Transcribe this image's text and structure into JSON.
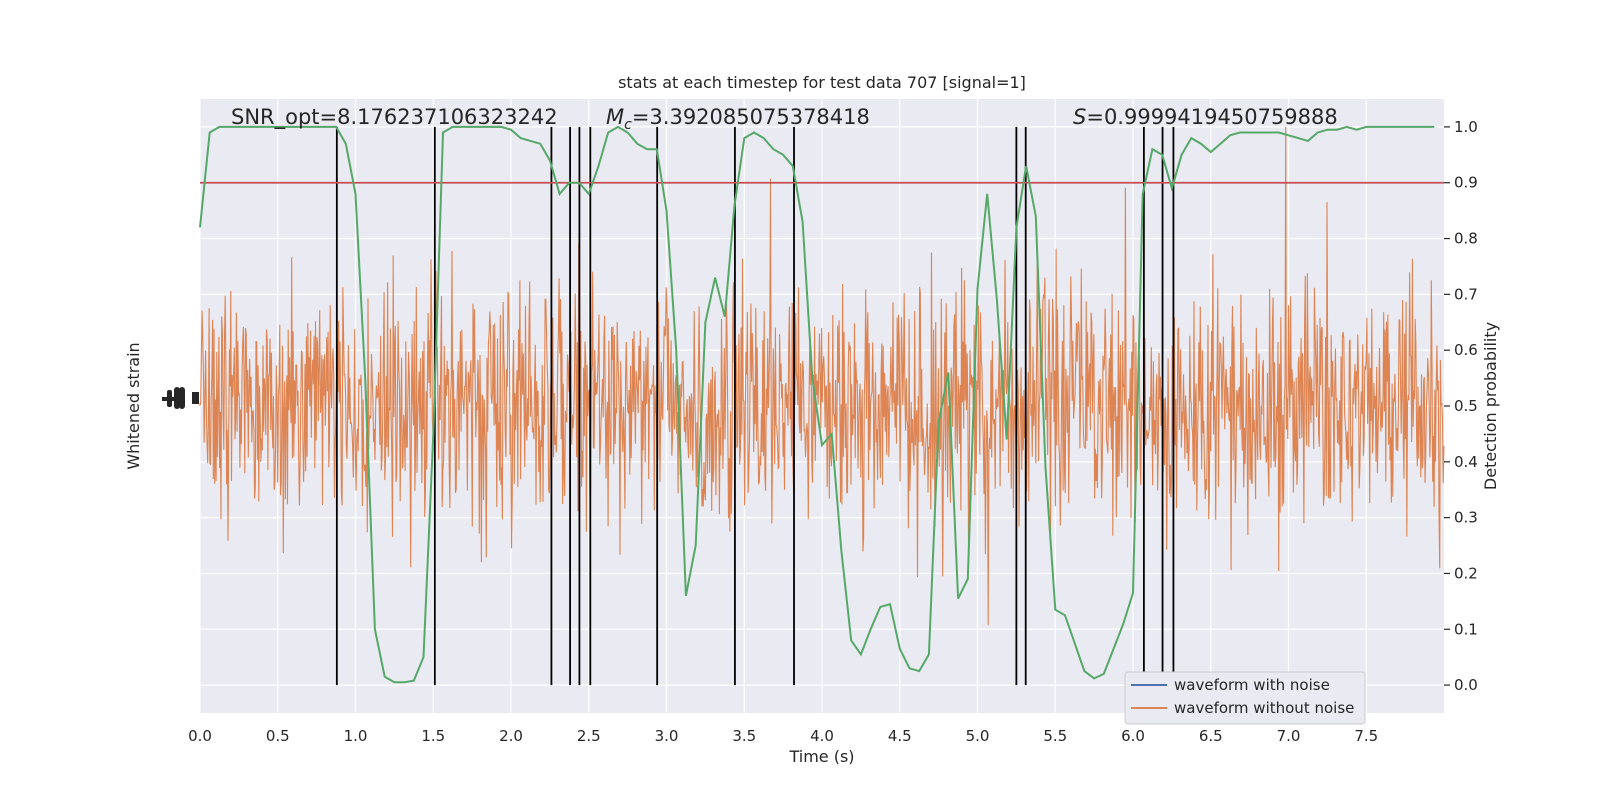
{
  "chart_data": {
    "type": "line",
    "title": "stats at each timestep for test data 707 [signal=1]",
    "xlabel": "Time (s)",
    "ylabel_left": "Whitened strain",
    "ylabel_right": "Detection probability",
    "xlim": [
      0,
      8
    ],
    "ylim_right": [
      -0.05,
      1.05
    ],
    "x_ticks": [
      0.0,
      0.5,
      1.0,
      1.5,
      2.0,
      2.5,
      3.0,
      3.5,
      4.0,
      4.5,
      5.0,
      5.5,
      6.0,
      6.5,
      7.0,
      7.5
    ],
    "x_tick_labels": [
      "0.0",
      "0.5",
      "1.0",
      "1.5",
      "2.0",
      "2.5",
      "3.0",
      "3.5",
      "4.0",
      "4.5",
      "5.0",
      "5.5",
      "6.0",
      "6.5",
      "7.0",
      "7.5"
    ],
    "y_right_ticks": [
      0.0,
      0.1,
      0.2,
      0.3,
      0.4,
      0.5,
      0.6,
      0.7,
      0.8,
      0.9,
      1.0
    ],
    "y_right_tick_labels": [
      "0.0",
      "0.1",
      "0.2",
      "0.3",
      "0.4",
      "0.5",
      "0.6",
      "0.7",
      "0.8",
      "0.9",
      "1.0"
    ],
    "threshold": 0.9,
    "threshold_color": "#c44e52",
    "annotations": {
      "snr": "SNR_opt=8.176237106323242",
      "mc_symbol": "M",
      "mc_sub": "c",
      "mc_value": "=3.392085075378418",
      "s_symbol": "S",
      "s_value": "=0.9999419450759888"
    },
    "trigger_lines_x": [
      0.88,
      1.51,
      2.26,
      2.38,
      2.44,
      2.51,
      2.94,
      3.44,
      3.82,
      5.25,
      5.31,
      6.07,
      6.19,
      6.26
    ],
    "legend": {
      "placement": "lower-right",
      "entries": [
        {
          "label": "waveform with noise",
          "color": "#4c72b0"
        },
        {
          "label": "waveform without noise",
          "color": "#dd8452"
        }
      ]
    },
    "strain_series_color": "#dd8452",
    "detection_series": {
      "color": "#55a868",
      "x": [
        0.0,
        0.0625,
        0.125,
        0.1875,
        0.25,
        0.3125,
        0.375,
        0.4375,
        0.5,
        0.5625,
        0.625,
        0.6875,
        0.75,
        0.8125,
        0.875,
        0.9375,
        1.0,
        1.0625,
        1.125,
        1.1875,
        1.25,
        1.3125,
        1.375,
        1.4375,
        1.5,
        1.5625,
        1.625,
        1.6875,
        1.75,
        1.8125,
        1.875,
        1.9375,
        2.0,
        2.0625,
        2.125,
        2.1875,
        2.25,
        2.3125,
        2.375,
        2.4375,
        2.5,
        2.5625,
        2.625,
        2.6875,
        2.75,
        2.8125,
        2.875,
        2.9375,
        3.0,
        3.0625,
        3.125,
        3.1875,
        3.25,
        3.3125,
        3.375,
        3.4375,
        3.5,
        3.5625,
        3.625,
        3.6875,
        3.75,
        3.8125,
        3.875,
        3.9375,
        4.0,
        4.0625,
        4.125,
        4.1875,
        4.25,
        4.3125,
        4.375,
        4.4375,
        4.5,
        4.5625,
        4.625,
        4.6875,
        4.75,
        4.8125,
        4.875,
        4.9375,
        5.0,
        5.0625,
        5.125,
        5.1875,
        5.25,
        5.3125,
        5.375,
        5.4375,
        5.5,
        5.5625,
        5.625,
        5.6875,
        5.75,
        5.8125,
        5.875,
        5.9375,
        6.0,
        6.0625,
        6.125,
        6.1875,
        6.25,
        6.3125,
        6.375,
        6.4375,
        6.5,
        6.5625,
        6.625,
        6.6875,
        6.75,
        6.8125,
        6.875,
        6.9375,
        7.0,
        7.0625,
        7.125,
        7.1875,
        7.25,
        7.3125,
        7.375,
        7.4375,
        7.5,
        7.5625,
        7.625,
        7.6875,
        7.75,
        7.8125,
        7.875,
        7.9375
      ],
      "y": [
        0.82,
        0.99,
        1.0,
        1.0,
        1.0,
        1.0,
        1.0,
        1.0,
        1.0,
        1.0,
        1.0,
        1.0,
        1.0,
        1.0,
        1.0,
        0.97,
        0.88,
        0.55,
        0.1,
        0.015,
        0.005,
        0.005,
        0.008,
        0.05,
        0.45,
        0.99,
        1.0,
        1.0,
        1.0,
        1.0,
        1.0,
        1.0,
        0.995,
        0.98,
        0.975,
        0.97,
        0.94,
        0.88,
        0.9,
        0.9,
        0.88,
        0.93,
        0.99,
        1.0,
        0.99,
        0.97,
        0.96,
        0.96,
        0.85,
        0.6,
        0.16,
        0.25,
        0.65,
        0.73,
        0.66,
        0.86,
        0.98,
        0.99,
        0.98,
        0.96,
        0.95,
        0.93,
        0.83,
        0.55,
        0.43,
        0.45,
        0.24,
        0.08,
        0.055,
        0.1,
        0.14,
        0.145,
        0.065,
        0.03,
        0.025,
        0.055,
        0.47,
        0.56,
        0.155,
        0.19,
        0.71,
        0.88,
        0.69,
        0.44,
        0.82,
        0.93,
        0.84,
        0.39,
        0.135,
        0.125,
        0.075,
        0.025,
        0.012,
        0.02,
        0.065,
        0.11,
        0.165,
        0.88,
        0.96,
        0.95,
        0.89,
        0.95,
        0.98,
        0.97,
        0.955,
        0.97,
        0.985,
        0.99,
        0.99,
        0.99,
        0.99,
        0.99,
        0.985,
        0.98,
        0.975,
        0.99,
        0.995,
        0.995,
        1.0,
        0.995,
        1.0,
        1.0,
        1.0,
        1.0,
        1.0,
        1.0,
        1.0,
        1.0
      ]
    }
  }
}
